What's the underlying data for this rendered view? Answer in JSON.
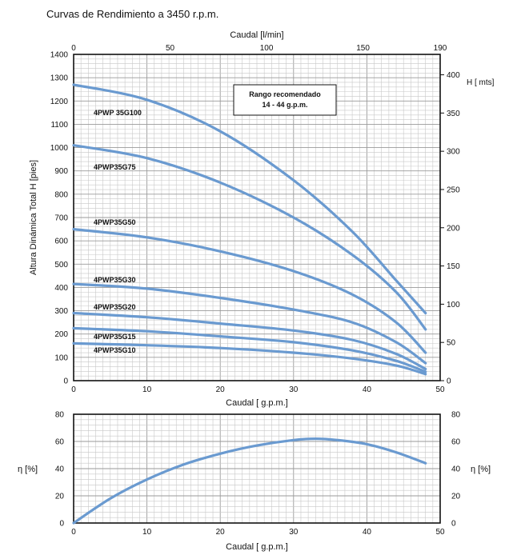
{
  "title": "Curvas de Rendimiento a 3450 r.p.m.",
  "chart_data": [
    {
      "type": "line",
      "name": "head-curves",
      "x_label": "Caudal [ g.p.m.]",
      "x_range": [
        0,
        50
      ],
      "x_ticks": [
        "0",
        "10",
        "20",
        "30",
        "40",
        "50"
      ],
      "top_x_label": "Caudal [l/min]",
      "top_x_range": [
        0,
        190
      ],
      "top_x_ticks": [
        "0",
        "50",
        "100",
        "150",
        "190"
      ],
      "y_label": "Altura Dinámica Total H [pies]",
      "y_range": [
        0,
        1400
      ],
      "y_ticks": [
        "0",
        "100",
        "200",
        "300",
        "400",
        "500",
        "600",
        "700",
        "800",
        "900",
        "1000",
        "1100",
        "1200",
        "1300",
        "1400"
      ],
      "right_y_label": "H [ mts]",
      "right_y_range": [
        0,
        426.7
      ],
      "right_y_ticks": [
        "0",
        "50",
        "100",
        "150",
        "200",
        "250",
        "300",
        "350",
        "400"
      ],
      "note": {
        "line1": "Rango recomendado",
        "line2": "14 - 44 g.p.m."
      },
      "series": [
        {
          "name": "4PWP 35G100",
          "x": [
            0,
            10,
            20,
            30,
            38,
            44,
            48
          ],
          "y": [
            1270,
            1205,
            1070,
            860,
            640,
            430,
            290
          ]
        },
        {
          "name": "4PWP35G75",
          "x": [
            0,
            10,
            20,
            30,
            38,
            44,
            48
          ],
          "y": [
            1010,
            955,
            850,
            700,
            540,
            380,
            220
          ]
        },
        {
          "name": "4PWP35G50",
          "x": [
            0,
            10,
            20,
            30,
            38,
            44,
            48
          ],
          "y": [
            650,
            615,
            555,
            470,
            370,
            250,
            120
          ]
        },
        {
          "name": "4PWP35G30",
          "x": [
            0,
            10,
            20,
            30,
            38,
            44,
            48
          ],
          "y": [
            415,
            395,
            355,
            305,
            250,
            165,
            75
          ]
        },
        {
          "name": "4PWP35G20",
          "x": [
            0,
            10,
            20,
            30,
            38,
            44,
            48
          ],
          "y": [
            290,
            272,
            245,
            215,
            175,
            115,
            50
          ]
        },
        {
          "name": "4PWP35G15",
          "x": [
            0,
            10,
            20,
            30,
            38,
            44,
            48
          ],
          "y": [
            225,
            212,
            190,
            165,
            130,
            85,
            38
          ]
        },
        {
          "name": "4PWP35G10",
          "x": [
            0,
            10,
            20,
            30,
            38,
            44,
            48
          ],
          "y": [
            160,
            152,
            140,
            120,
            95,
            65,
            28
          ]
        }
      ]
    },
    {
      "type": "line",
      "name": "efficiency-curve",
      "x_label": "Caudal [ g.p.m.]",
      "x_range": [
        0,
        50
      ],
      "x_ticks": [
        "0",
        "10",
        "20",
        "30",
        "40",
        "50"
      ],
      "y_label": "η [%]",
      "y_range": [
        0,
        80
      ],
      "y_ticks": [
        "0",
        "20",
        "40",
        "60",
        "80"
      ],
      "right_y_label": "η [%]",
      "right_y_ticks": [
        "0",
        "20",
        "40",
        "60",
        "80"
      ],
      "series": [
        {
          "name": "efficiency",
          "x": [
            0,
            5,
            10,
            15,
            20,
            25,
            30,
            33,
            36,
            40,
            44,
            48
          ],
          "y": [
            0,
            18,
            32,
            43,
            51,
            57,
            61,
            62,
            61,
            58,
            52,
            44
          ]
        }
      ]
    }
  ]
}
